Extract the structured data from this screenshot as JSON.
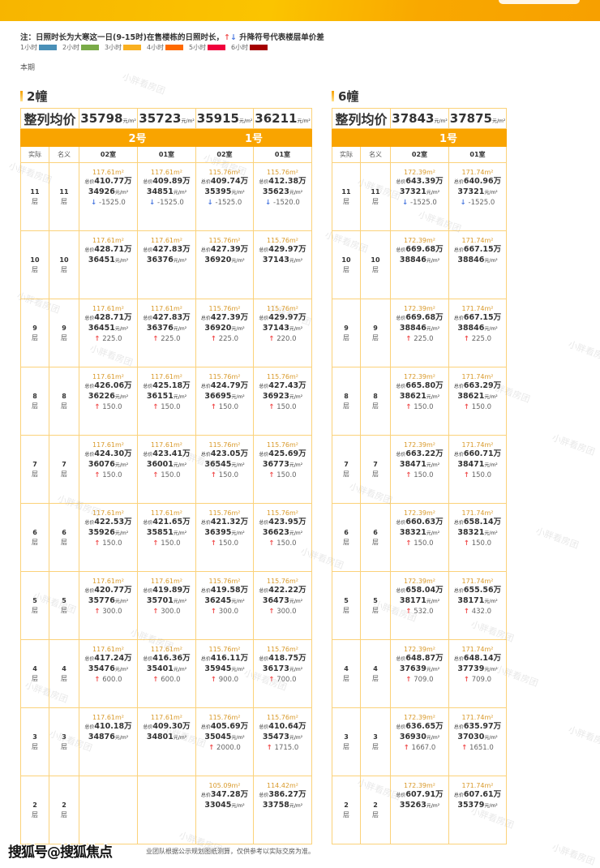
{
  "note": {
    "text_before": "注：日照时长为大寒这一日(9-15时)在售楼栋的日照时长，",
    "up_arrow": "↑",
    "down_arrow": "↓",
    "text_after": " 升降符号代表楼层单价差"
  },
  "legend": [
    {
      "label": "1小时",
      "color": "#4a90b8"
    },
    {
      "label": "2小时",
      "color": "#7aab48"
    },
    {
      "label": "3小时",
      "color": "#f9b020"
    },
    {
      "label": "4小时",
      "color": "#ff6a00"
    },
    {
      "label": "5小时",
      "color": "#f0003c"
    },
    {
      "label": "6小时",
      "color": "#a50000"
    }
  ],
  "period": "本期",
  "labels": {
    "avg": "整列均价",
    "actual": "实际",
    "nominal": "名义",
    "total_prefix": "总价",
    "wan": "万",
    "unit_suffix": "元/m²",
    "floor_suffix": "层"
  },
  "colors": {
    "accent": "#f9a400",
    "border": "#fbd27a",
    "area": "#d99a2b",
    "up": "#f05050",
    "down": "#4a78e0"
  },
  "buildings": [
    {
      "name": "2幢",
      "averages": [
        "35798",
        "35723",
        "35915",
        "36211"
      ],
      "units": [
        {
          "name": "2号",
          "span": 2
        },
        {
          "name": "1号",
          "span": 2
        }
      ],
      "rooms": [
        "02室",
        "01室",
        "02室",
        "01室"
      ],
      "rows": [
        {
          "actual": "11",
          "nominal": "11",
          "cells": [
            {
              "area": "117.61m²",
              "total": "410.77",
              "unit": "34926",
              "diff": "-1525.0",
              "dir": "down"
            },
            {
              "area": "117.61m²",
              "total": "409.89",
              "unit": "34851",
              "diff": "-1525.0",
              "dir": "down"
            },
            {
              "area": "115.76m²",
              "total": "409.74",
              "unit": "35395",
              "diff": "-1525.0",
              "dir": "down"
            },
            {
              "area": "115.76m²",
              "total": "412.38",
              "unit": "35623",
              "diff": "-1520.0",
              "dir": "down"
            }
          ]
        },
        {
          "actual": "10",
          "nominal": "10",
          "cells": [
            {
              "area": "117.61m²",
              "total": "428.71",
              "unit": "36451"
            },
            {
              "area": "117.61m²",
              "total": "427.83",
              "unit": "36376"
            },
            {
              "area": "115.76m²",
              "total": "427.39",
              "unit": "36920"
            },
            {
              "area": "115.76m²",
              "total": "429.97",
              "unit": "37143"
            }
          ]
        },
        {
          "actual": "9",
          "nominal": "9",
          "cells": [
            {
              "area": "117.61m²",
              "total": "428.71",
              "unit": "36451",
              "diff": "225.0",
              "dir": "up"
            },
            {
              "area": "117.61m²",
              "total": "427.83",
              "unit": "36376",
              "diff": "225.0",
              "dir": "up"
            },
            {
              "area": "115.76m²",
              "total": "427.39",
              "unit": "36920",
              "diff": "225.0",
              "dir": "up"
            },
            {
              "area": "115.76m²",
              "total": "429.97",
              "unit": "37143",
              "diff": "220.0",
              "dir": "up"
            }
          ]
        },
        {
          "actual": "8",
          "nominal": "8",
          "cells": [
            {
              "area": "117.61m²",
              "total": "426.06",
              "unit": "36226",
              "diff": "150.0",
              "dir": "up"
            },
            {
              "area": "117.61m²",
              "total": "425.18",
              "unit": "36151",
              "diff": "150.0",
              "dir": "up"
            },
            {
              "area": "115.76m²",
              "total": "424.79",
              "unit": "36695",
              "diff": "150.0",
              "dir": "up"
            },
            {
              "area": "115.76m²",
              "total": "427.43",
              "unit": "36923",
              "diff": "150.0",
              "dir": "up"
            }
          ]
        },
        {
          "actual": "7",
          "nominal": "7",
          "cells": [
            {
              "area": "117.61m²",
              "total": "424.30",
              "unit": "36076",
              "diff": "150.0",
              "dir": "up"
            },
            {
              "area": "117.61m²",
              "total": "423.41",
              "unit": "36001",
              "diff": "150.0",
              "dir": "up"
            },
            {
              "area": "115.76m²",
              "total": "423.05",
              "unit": "36545",
              "diff": "150.0",
              "dir": "up"
            },
            {
              "area": "115.76m²",
              "total": "425.69",
              "unit": "36773",
              "diff": "150.0",
              "dir": "up"
            }
          ]
        },
        {
          "actual": "6",
          "nominal": "6",
          "cells": [
            {
              "area": "117.61m²",
              "total": "422.53",
              "unit": "35926",
              "diff": "150.0",
              "dir": "up"
            },
            {
              "area": "117.61m²",
              "total": "421.65",
              "unit": "35851",
              "diff": "150.0",
              "dir": "up"
            },
            {
              "area": "115.76m²",
              "total": "421.32",
              "unit": "36395",
              "diff": "150.0",
              "dir": "up"
            },
            {
              "area": "115.76m²",
              "total": "423.95",
              "unit": "36623",
              "diff": "150.0",
              "dir": "up"
            }
          ]
        },
        {
          "actual": "5",
          "nominal": "5",
          "cells": [
            {
              "area": "117.61m²",
              "total": "420.77",
              "unit": "35776",
              "diff": "300.0",
              "dir": "up"
            },
            {
              "area": "117.61m²",
              "total": "419.89",
              "unit": "35701",
              "diff": "300.0",
              "dir": "up"
            },
            {
              "area": "115.76m²",
              "total": "419.58",
              "unit": "36245",
              "diff": "300.0",
              "dir": "up"
            },
            {
              "area": "115.76m²",
              "total": "422.22",
              "unit": "36473",
              "diff": "300.0",
              "dir": "up"
            }
          ]
        },
        {
          "actual": "4",
          "nominal": "4",
          "cells": [
            {
              "area": "117.61m²",
              "total": "417.24",
              "unit": "35476",
              "diff": "600.0",
              "dir": "up"
            },
            {
              "area": "117.61m²",
              "total": "416.36",
              "unit": "35401",
              "diff": "600.0",
              "dir": "up"
            },
            {
              "area": "115.76m²",
              "total": "416.11",
              "unit": "35945",
              "diff": "900.0",
              "dir": "up"
            },
            {
              "area": "115.76m²",
              "total": "418.75",
              "unit": "36173",
              "diff": "700.0",
              "dir": "up"
            }
          ]
        },
        {
          "actual": "3",
          "nominal": "3",
          "cells": [
            {
              "area": "117.61m²",
              "total": "410.18",
              "unit": "34876"
            },
            {
              "area": "117.61m²",
              "total": "409.30",
              "unit": "34801"
            },
            {
              "area": "115.76m²",
              "total": "405.69",
              "unit": "35045",
              "diff": "2000.0",
              "dir": "up"
            },
            {
              "area": "115.76m²",
              "total": "410.64",
              "unit": "35473",
              "diff": "1715.0",
              "dir": "up"
            }
          ]
        },
        {
          "actual": "2",
          "nominal": "2",
          "cells": [
            null,
            null,
            {
              "area": "105.09m²",
              "total": "347.28",
              "unit": "33045"
            },
            {
              "area": "114.42m²",
              "total": "386.27",
              "unit": "33758"
            }
          ]
        }
      ]
    },
    {
      "name": "6幢",
      "averages": [
        "37843",
        "37875"
      ],
      "units": [
        {
          "name": "1号",
          "span": 2
        }
      ],
      "rooms": [
        "02室",
        "01室"
      ],
      "rows": [
        {
          "actual": "11",
          "nominal": "11",
          "cells": [
            {
              "area": "172.39m²",
              "total": "643.39",
              "unit": "37321",
              "diff": "-1525.0",
              "dir": "down"
            },
            {
              "area": "171.74m²",
              "total": "640.96",
              "unit": "37321",
              "diff": "-1525.0",
              "dir": "down"
            }
          ]
        },
        {
          "actual": "10",
          "nominal": "10",
          "cells": [
            {
              "area": "172.39m²",
              "total": "669.68",
              "unit": "38846"
            },
            {
              "area": "171.74m²",
              "total": "667.15",
              "unit": "38846"
            }
          ]
        },
        {
          "actual": "9",
          "nominal": "9",
          "cells": [
            {
              "area": "172.39m²",
              "total": "669.68",
              "unit": "38846",
              "diff": "225.0",
              "dir": "up"
            },
            {
              "area": "171.74m²",
              "total": "667.15",
              "unit": "38846",
              "diff": "225.0",
              "dir": "up"
            }
          ]
        },
        {
          "actual": "8",
          "nominal": "8",
          "cells": [
            {
              "area": "172.39m²",
              "total": "665.80",
              "unit": "38621",
              "diff": "150.0",
              "dir": "up"
            },
            {
              "area": "171.74m²",
              "total": "663.29",
              "unit": "38621",
              "diff": "150.0",
              "dir": "up"
            }
          ]
        },
        {
          "actual": "7",
          "nominal": "7",
          "cells": [
            {
              "area": "172.39m²",
              "total": "663.22",
              "unit": "38471",
              "diff": "150.0",
              "dir": "up"
            },
            {
              "area": "171.74m²",
              "total": "660.71",
              "unit": "38471",
              "diff": "150.0",
              "dir": "up"
            }
          ]
        },
        {
          "actual": "6",
          "nominal": "6",
          "cells": [
            {
              "area": "172.39m²",
              "total": "660.63",
              "unit": "38321",
              "diff": "150.0",
              "dir": "up"
            },
            {
              "area": "171.74m²",
              "total": "658.14",
              "unit": "38321",
              "diff": "150.0",
              "dir": "up"
            }
          ]
        },
        {
          "actual": "5",
          "nominal": "5",
          "cells": [
            {
              "area": "172.39m²",
              "total": "658.04",
              "unit": "38171",
              "diff": "532.0",
              "dir": "up"
            },
            {
              "area": "171.74m²",
              "total": "655.56",
              "unit": "38171",
              "diff": "432.0",
              "dir": "up"
            }
          ]
        },
        {
          "actual": "4",
          "nominal": "4",
          "cells": [
            {
              "area": "172.39m²",
              "total": "648.87",
              "unit": "37639",
              "diff": "709.0",
              "dir": "up"
            },
            {
              "area": "171.74m²",
              "total": "648.14",
              "unit": "37739",
              "diff": "709.0",
              "dir": "up"
            }
          ]
        },
        {
          "actual": "3",
          "nominal": "3",
          "cells": [
            {
              "area": "172.39m²",
              "total": "636.65",
              "unit": "36930",
              "diff": "1667.0",
              "dir": "up"
            },
            {
              "area": "171.74m²",
              "total": "635.97",
              "unit": "37030",
              "diff": "1651.0",
              "dir": "up"
            }
          ]
        },
        {
          "actual": "2",
          "nominal": "2",
          "cells": [
            {
              "area": "172.39m²",
              "total": "607.91",
              "unit": "35263"
            },
            {
              "area": "171.74m²",
              "total": "607.61",
              "unit": "35379"
            }
          ]
        }
      ]
    }
  ],
  "watermark": "小胖看房团",
  "footer": "业团队根据公示规划图纸测算，仅供参考以实际交房为准。",
  "source_logo": "搜狐号@搜狐焦点"
}
